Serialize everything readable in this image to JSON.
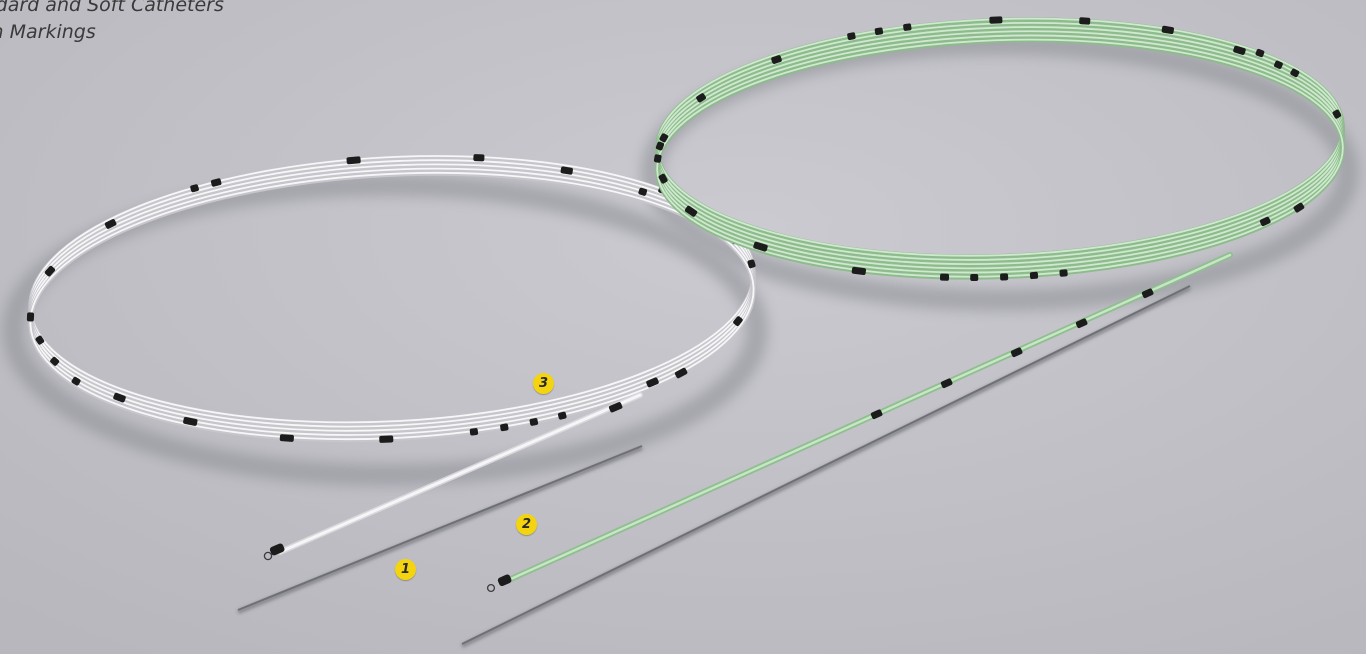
{
  "caption": {
    "line1": "andard and Soft Catheters",
    "line2": "pth Markings"
  },
  "callouts": [
    {
      "label": "1"
    },
    {
      "label": "2"
    },
    {
      "label": "3"
    }
  ],
  "colors": {
    "background": "#c0c0c6",
    "standard_catheter": "#f2f2f4",
    "soft_catheter": "#a9d3a8",
    "depth_marking": "#1c1c1c",
    "callout_badge": "#f4d40e"
  }
}
